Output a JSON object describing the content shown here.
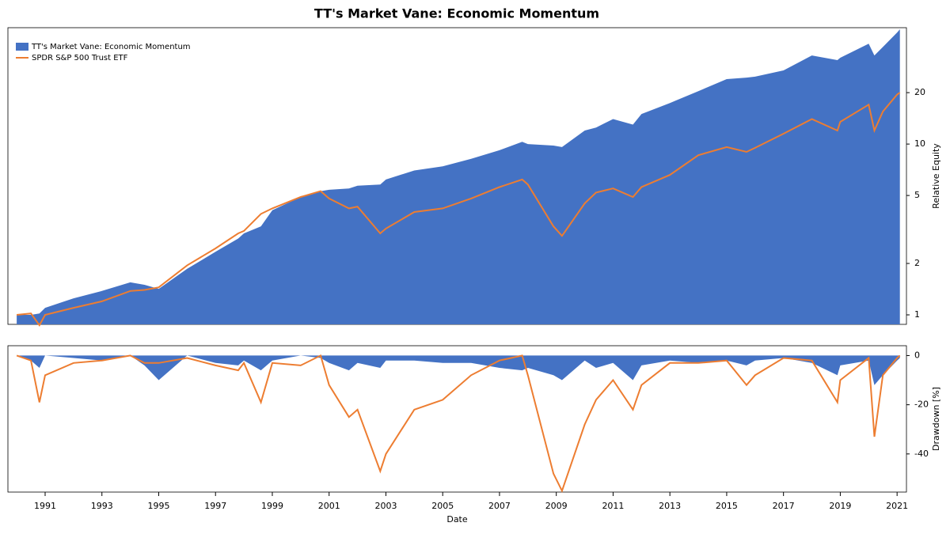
{
  "chart_data": [
    {
      "type": "line",
      "title": "TT's Market Vane: Economic Momentum",
      "ylabel": "Relative Equity",
      "yscale": "log",
      "legend": "upper left",
      "x": [
        1990.0,
        1990.5,
        1990.8,
        1991.0,
        1992.0,
        1993.0,
        1994.0,
        1994.5,
        1995.0,
        1996.0,
        1997.0,
        1997.8,
        1998.0,
        1998.6,
        1999.0,
        2000.0,
        2000.7,
        2001.0,
        2001.7,
        2002.0,
        2002.8,
        2003.0,
        2004.0,
        2005.0,
        2006.0,
        2007.0,
        2007.8,
        2008.0,
        2008.9,
        2009.2,
        2010.0,
        2010.4,
        2011.0,
        2011.7,
        2012.0,
        2013.0,
        2014.0,
        2015.0,
        2015.7,
        2016.0,
        2017.0,
        2018.0,
        2018.9,
        2019.0,
        2020.0,
        2020.2,
        2020.5,
        2021.0,
        2021.1
      ],
      "series": [
        {
          "name": "TT's Market Vane: Economic Momentum",
          "color": "#4472c4",
          "fill": true,
          "values": [
            1,
            1,
            1.02,
            1.1,
            1.25,
            1.38,
            1.55,
            1.5,
            1.42,
            1.86,
            2.34,
            2.8,
            3,
            3.3,
            4.1,
            4.9,
            5.3,
            5.4,
            5.5,
            5.7,
            5.8,
            6.2,
            7,
            7.4,
            8.2,
            9.2,
            10.3,
            10,
            9.8,
            9.6,
            12,
            12.5,
            14,
            13,
            15,
            17.4,
            20.4,
            24,
            24.5,
            24.8,
            27,
            33,
            31,
            32,
            38.7,
            33,
            37,
            45,
            47
          ]
        },
        {
          "name": "SPDR S&P 500 Trust ETF",
          "color": "#ed7d31",
          "fill": false,
          "values": [
            1,
            1.02,
            0.87,
            1,
            1.1,
            1.2,
            1.38,
            1.4,
            1.45,
            1.95,
            2.45,
            3,
            3.1,
            3.9,
            4.2,
            4.9,
            5.3,
            4.8,
            4.2,
            4.3,
            3,
            3.2,
            4,
            4.2,
            4.8,
            5.6,
            6.2,
            5.8,
            3.3,
            2.9,
            4.5,
            5.2,
            5.5,
            4.9,
            5.6,
            6.6,
            8.6,
            9.6,
            9,
            9.5,
            11.5,
            14,
            12,
            13.5,
            17,
            12,
            15.5,
            19.5,
            20
          ]
        }
      ],
      "xlim": [
        1989.69,
        2021.33
      ],
      "ylim": [
        0.88,
        48
      ],
      "yticks": [
        1,
        2,
        5,
        10,
        20
      ]
    },
    {
      "type": "line",
      "xlabel": "Date",
      "ylabel": "Drawdown [%]",
      "x": [
        1990.0,
        1990.5,
        1990.8,
        1991.0,
        1992.0,
        1993.0,
        1994.0,
        1994.5,
        1995.0,
        1996.0,
        1997.0,
        1997.8,
        1998.0,
        1998.6,
        1999.0,
        2000.0,
        2000.7,
        2001.0,
        2001.7,
        2002.0,
        2002.8,
        2003.0,
        2004.0,
        2005.0,
        2006.0,
        2007.0,
        2007.8,
        2008.0,
        2008.9,
        2009.2,
        2010.0,
        2010.4,
        2011.0,
        2011.7,
        2012.0,
        2013.0,
        2014.0,
        2015.0,
        2015.7,
        2016.0,
        2017.0,
        2018.0,
        2018.9,
        2019.0,
        2020.0,
        2020.2,
        2020.5,
        2021.0,
        2021.1
      ],
      "series": [
        {
          "color": "#4472c4",
          "fill": true,
          "values": [
            0,
            -2,
            -5,
            0,
            -1,
            -2,
            0,
            -4,
            -10,
            0,
            -3,
            -4,
            -2,
            -6,
            -2,
            0,
            -1,
            -3,
            -6,
            -3,
            -5,
            -2,
            -2,
            -3,
            -3,
            -5,
            -6,
            -5,
            -8,
            -10,
            -2,
            -5,
            -3,
            -10,
            -4,
            -2,
            -3,
            -2,
            -4,
            -2,
            -1,
            -3,
            -8,
            -4,
            -2,
            -12,
            -8,
            -2,
            -1
          ]
        },
        {
          "color": "#ed7d31",
          "fill": false,
          "values": [
            0,
            -2,
            -19,
            -8,
            -3,
            -2,
            0,
            -3,
            -3,
            -1,
            -4,
            -6,
            -3,
            -19,
            -3,
            -4,
            0,
            -12,
            -25,
            -22,
            -47,
            -40,
            -22,
            -18,
            -8,
            -2,
            0,
            -8,
            -48,
            -55,
            -28,
            -18,
            -10,
            -22,
            -12,
            -3,
            -3,
            -2,
            -12,
            -8,
            -1,
            -2,
            -19,
            -10,
            -1,
            -33,
            -8,
            -1,
            0
          ]
        }
      ],
      "xlim": [
        1989.69,
        2021.33
      ],
      "ylim": [
        -55.5,
        4
      ],
      "yticks": [
        0,
        -20,
        -40
      ],
      "xticks": [
        1991,
        1993,
        1995,
        1997,
        1999,
        2001,
        2003,
        2005,
        2007,
        2009,
        2011,
        2013,
        2015,
        2017,
        2019,
        2021
      ]
    }
  ]
}
